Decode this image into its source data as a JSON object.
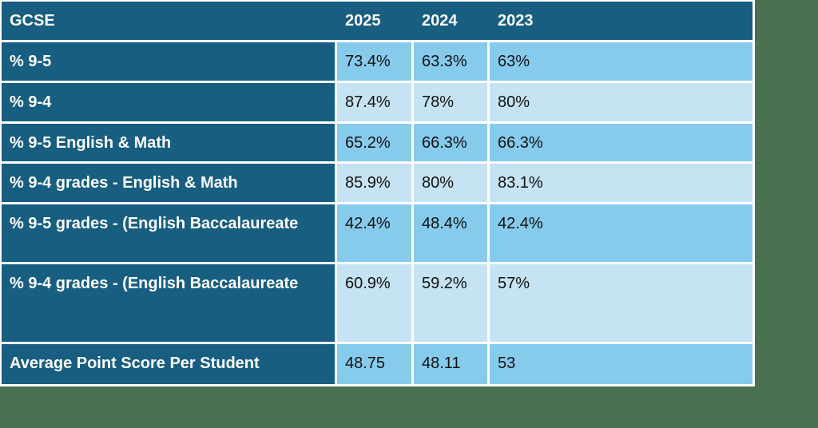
{
  "colors": {
    "page_bg": "#4a714f",
    "header_bg": "#175e80",
    "label_bg": "#175e80",
    "row_odd_bg": "#86cbec",
    "row_even_bg": "#c5e3f2",
    "header_text": "#ffffff",
    "value_text": "#111111",
    "border": "#ffffff"
  },
  "chart_data": {
    "type": "table",
    "title": "GCSE",
    "corner_label": "GCSE",
    "columns": [
      "2025",
      "2024",
      "2023"
    ],
    "rows": [
      {
        "label": "% 9-5",
        "values": [
          "73.4%",
          "63.3%",
          "63%"
        ]
      },
      {
        "label": "% 9-4",
        "values": [
          "87.4%",
          "78%",
          "80%"
        ]
      },
      {
        "label": "% 9-5 English & Math",
        "values": [
          "65.2%",
          "66.3%",
          "66.3%"
        ]
      },
      {
        "label": "% 9-4 grades - English & Math",
        "values": [
          "85.9%",
          "80%",
          "83.1%"
        ]
      },
      {
        "label": "% 9-5 grades - (English Baccalaureate",
        "values": [
          "42.4%",
          "48.4%",
          "42.4%"
        ]
      },
      {
        "label": "% 9-4 grades - (English Baccalaureate",
        "values": [
          "60.9%",
          "59.2%",
          "57%"
        ]
      },
      {
        "label": "Average Point Score Per Student",
        "values": [
          "48.75",
          "48.11",
          "53"
        ]
      }
    ]
  }
}
